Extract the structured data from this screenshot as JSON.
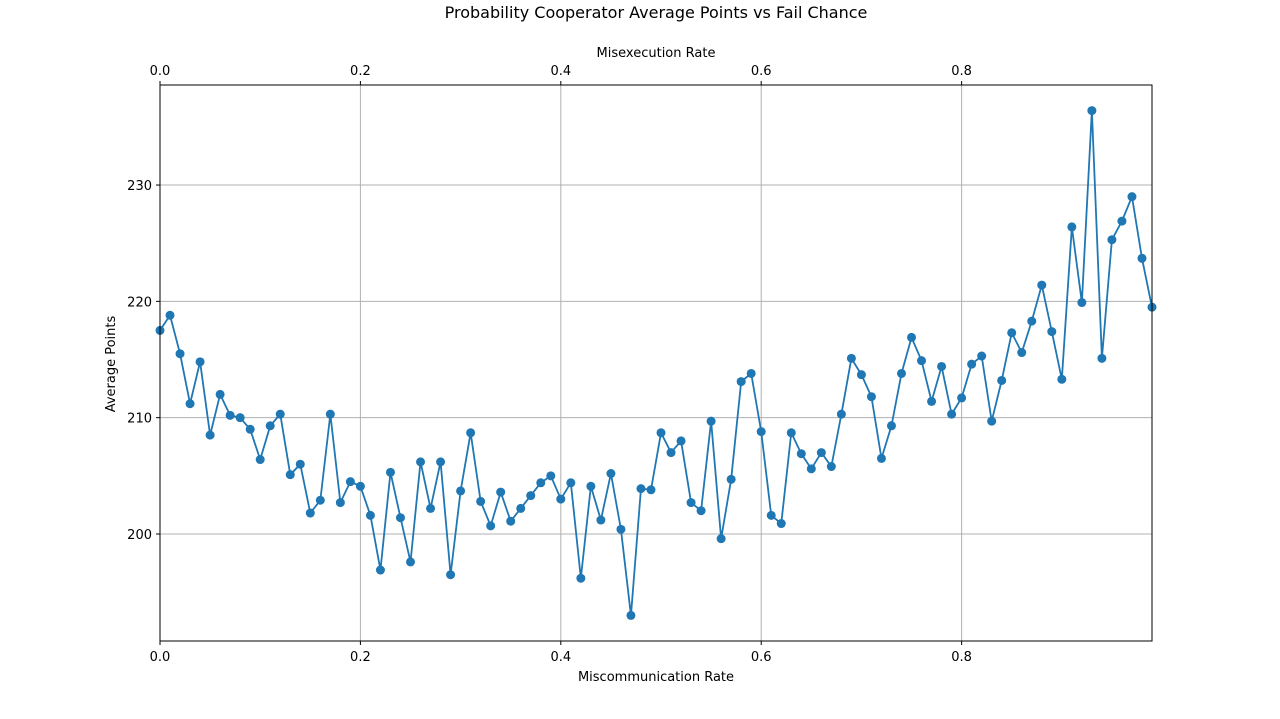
{
  "chart_data": {
    "type": "line",
    "title": "Probability Cooperator Average Points vs Fail Chance",
    "xlabel": "Miscommunication Rate",
    "x2label": "Misexecution Rate",
    "ylabel": "Average Points",
    "xlim": [
      0,
      0.99
    ],
    "ylim": [
      190.8,
      238.6
    ],
    "xticks": [
      "0.0",
      "0.2",
      "0.4",
      "0.6",
      "0.8"
    ],
    "x2ticks": [
      "0.0",
      "0.2",
      "0.4",
      "0.6",
      "0.8"
    ],
    "yticks": [
      "200",
      "210",
      "220",
      "230"
    ],
    "grid": true,
    "color": "#1f77b4",
    "x": [
      0.0,
      0.01,
      0.02,
      0.03,
      0.04,
      0.05,
      0.06,
      0.07,
      0.08,
      0.09,
      0.1,
      0.11,
      0.12,
      0.13,
      0.14,
      0.15,
      0.16,
      0.17,
      0.18,
      0.19,
      0.2,
      0.21,
      0.22,
      0.23,
      0.24,
      0.25,
      0.26,
      0.27,
      0.28,
      0.29,
      0.3,
      0.31,
      0.32,
      0.33,
      0.34,
      0.35,
      0.36,
      0.37,
      0.38,
      0.39,
      0.4,
      0.41,
      0.42,
      0.43,
      0.44,
      0.45,
      0.46,
      0.47,
      0.48,
      0.49,
      0.5,
      0.51,
      0.52,
      0.53,
      0.54,
      0.55,
      0.56,
      0.57,
      0.58,
      0.59,
      0.6,
      0.61,
      0.62,
      0.63,
      0.64,
      0.65,
      0.66,
      0.67,
      0.68,
      0.69,
      0.7,
      0.71,
      0.72,
      0.73,
      0.74,
      0.75,
      0.76,
      0.77,
      0.78,
      0.79,
      0.8,
      0.81,
      0.82,
      0.83,
      0.84,
      0.85,
      0.86,
      0.87,
      0.88,
      0.89,
      0.9,
      0.91,
      0.92,
      0.93,
      0.94,
      0.95,
      0.96,
      0.97,
      0.98,
      0.99
    ],
    "values": [
      217.5,
      218.8,
      215.5,
      211.2,
      214.8,
      208.5,
      212.0,
      210.2,
      210.0,
      209.0,
      206.4,
      209.3,
      210.3,
      205.1,
      206.0,
      201.8,
      202.9,
      210.3,
      202.7,
      204.5,
      204.1,
      201.6,
      196.9,
      205.3,
      201.4,
      197.6,
      206.2,
      202.2,
      206.2,
      196.5,
      203.7,
      208.7,
      202.8,
      200.7,
      203.6,
      201.1,
      202.2,
      203.3,
      204.4,
      205.0,
      203.0,
      204.4,
      196.2,
      204.1,
      201.2,
      205.2,
      200.4,
      193.0,
      203.9,
      203.8,
      208.7,
      207.0,
      208.0,
      202.7,
      202.0,
      209.7,
      199.6,
      204.7,
      213.1,
      213.8,
      208.8,
      201.6,
      200.9,
      208.7,
      206.9,
      205.6,
      207.0,
      205.8,
      210.3,
      215.1,
      213.7,
      211.8,
      206.5,
      209.3,
      213.8,
      216.9,
      214.9,
      211.4,
      214.4,
      210.3,
      211.7,
      214.6,
      215.3,
      209.7,
      213.2,
      217.3,
      215.6,
      218.3,
      221.4,
      217.4,
      213.3,
      226.4,
      219.9,
      236.4,
      215.1,
      225.3,
      226.9,
      229.0,
      223.7,
      219.5
    ]
  }
}
